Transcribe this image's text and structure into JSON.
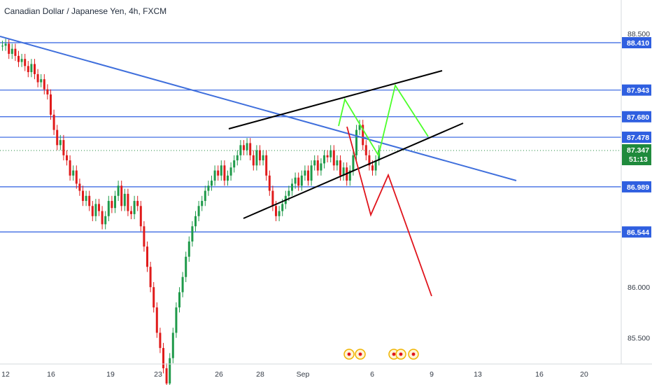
{
  "title": "Canadian Dollar / Japanese Yen, 4h, FXCM",
  "colors": {
    "up": "#1f9a4a",
    "down": "#e01b1b",
    "level": "#2f5fe0",
    "trend": "#3f6fdc",
    "channel": "#000000",
    "bull_path": "#4cff2a",
    "bear_path": "#e0141c",
    "current_price": "#1f8a3c"
  },
  "chart_data": {
    "type": "candlestick",
    "symbol": "CADJPY",
    "interval": "4h",
    "source": "FXCM",
    "y_ticks": [
      "88.500",
      "86.000",
      "85.500"
    ],
    "x_ticks": [
      "12",
      "16",
      "19",
      "23",
      "26",
      "28",
      "Sep",
      "6",
      "9",
      "13",
      "16",
      "20"
    ],
    "levels": [
      88.41,
      87.943,
      87.68,
      87.478,
      86.989,
      86.544
    ],
    "level_labels": [
      "88.410",
      "87.943",
      "87.680",
      "87.478",
      "86.989",
      "86.544"
    ],
    "current_price": "87.347",
    "countdown": "51:13",
    "event_markers": 5
  }
}
